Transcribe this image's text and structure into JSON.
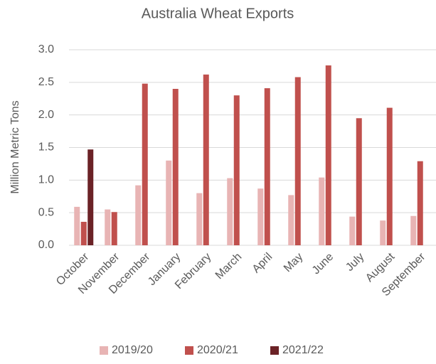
{
  "chart_data": {
    "type": "bar",
    "title": "Australia Wheat Exports",
    "y_label": "Million Metric Tons",
    "categories": [
      "October",
      "November",
      "December",
      "January",
      "February",
      "March",
      "April",
      "May",
      "June",
      "July",
      "August",
      "September"
    ],
    "series": [
      {
        "name": "2019/20",
        "color": "#e8b4b4",
        "values": [
          0.59,
          0.55,
          0.92,
          1.3,
          0.8,
          1.03,
          0.87,
          0.77,
          1.04,
          0.44,
          0.38,
          0.45
        ]
      },
      {
        "name": "2020/21",
        "color": "#c0504d",
        "values": [
          0.36,
          0.51,
          2.48,
          2.4,
          2.62,
          2.3,
          2.41,
          2.58,
          2.76,
          1.95,
          2.11,
          1.29
        ]
      },
      {
        "name": "2021/22",
        "color": "#6b2226",
        "values": [
          1.47,
          null,
          null,
          null,
          null,
          null,
          null,
          null,
          null,
          null,
          null,
          null
        ]
      }
    ],
    "ylim": [
      0,
      3
    ],
    "yticks": [
      {
        "value": 0,
        "label": "0.0"
      },
      {
        "value": 0.5,
        "label": "0.5"
      },
      {
        "value": 1,
        "label": "1.0"
      },
      {
        "value": 1.5,
        "label": "1.5"
      },
      {
        "value": 2,
        "label": "2.0"
      },
      {
        "value": 2.5,
        "label": "2.5"
      },
      {
        "value": 3,
        "label": "3.0"
      }
    ],
    "grid": true,
    "legend": "bottom"
  }
}
